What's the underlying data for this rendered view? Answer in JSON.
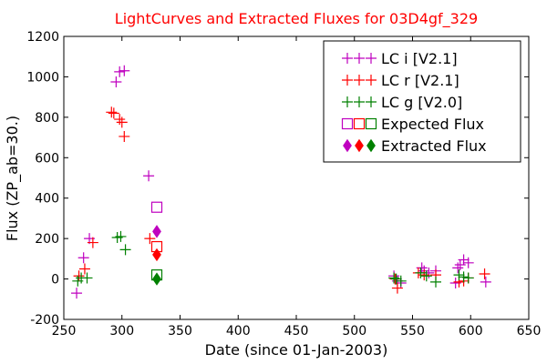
{
  "chart_data": {
    "type": "scatter",
    "title": "LightCurves and Extracted Fluxes for 03D4gf_329",
    "xlabel": "Date (since 01-Jan-2003)",
    "ylabel": "Flux (ZP_ab=30.)",
    "xlim": [
      250,
      650
    ],
    "ylim": [
      -200,
      1200
    ],
    "xticks": [
      250,
      300,
      350,
      400,
      450,
      500,
      550,
      600,
      650
    ],
    "yticks": [
      -200,
      0,
      200,
      400,
      600,
      800,
      1000,
      1200
    ],
    "grid": false,
    "legend": {
      "placement": "top-right"
    },
    "series": [
      {
        "name": "LC i [V2.1]",
        "marker": "plus",
        "color": "#bf00bf",
        "points": [
          [
            261,
            -70
          ],
          [
            267,
            105
          ],
          [
            272,
            200
          ],
          [
            295,
            975
          ],
          [
            298,
            1025
          ],
          [
            302,
            1030
          ],
          [
            323,
            510
          ],
          [
            534,
            15
          ],
          [
            537,
            -10
          ],
          [
            540,
            -20
          ],
          [
            558,
            55
          ],
          [
            560,
            40
          ],
          [
            564,
            30
          ],
          [
            570,
            40
          ],
          [
            587,
            -20
          ],
          [
            589,
            55
          ],
          [
            591,
            70
          ],
          [
            594,
            95
          ],
          [
            598,
            80
          ],
          [
            613,
            -15
          ]
        ]
      },
      {
        "name": "LC r [V2.1]",
        "marker": "plus",
        "color": "#ff0000",
        "points": [
          [
            263,
            15
          ],
          [
            268,
            50
          ],
          [
            275,
            180
          ],
          [
            291,
            825
          ],
          [
            293,
            820
          ],
          [
            298,
            790
          ],
          [
            300,
            775
          ],
          [
            302,
            705
          ],
          [
            324,
            200
          ],
          [
            535,
            0
          ],
          [
            537,
            -45
          ],
          [
            555,
            30
          ],
          [
            560,
            20
          ],
          [
            570,
            20
          ],
          [
            590,
            -15
          ],
          [
            594,
            -10
          ],
          [
            598,
            5
          ],
          [
            612,
            25
          ]
        ]
      },
      {
        "name": "LC g [V2.0]",
        "marker": "plus",
        "color": "#008000",
        "points": [
          [
            262,
            -10
          ],
          [
            265,
            5
          ],
          [
            270,
            5
          ],
          [
            296,
            205
          ],
          [
            299,
            210
          ],
          [
            303,
            145
          ],
          [
            534,
            5
          ],
          [
            536,
            0
          ],
          [
            540,
            -10
          ],
          [
            557,
            30
          ],
          [
            562,
            15
          ],
          [
            570,
            -15
          ],
          [
            590,
            20
          ],
          [
            594,
            10
          ],
          [
            598,
            5
          ]
        ]
      },
      {
        "name": "Expected Flux",
        "marker": "square",
        "colors": [
          "#bf00bf",
          "#ff0000",
          "#008000"
        ],
        "points": [
          [
            330,
            355
          ],
          [
            330,
            160
          ],
          [
            330,
            20
          ]
        ]
      },
      {
        "name": "Extracted Flux",
        "marker": "diamond",
        "colors": [
          "#bf00bf",
          "#ff0000",
          "#008000"
        ],
        "points": [
          [
            330,
            235
          ],
          [
            330,
            120
          ],
          [
            330,
            0
          ]
        ]
      }
    ]
  }
}
